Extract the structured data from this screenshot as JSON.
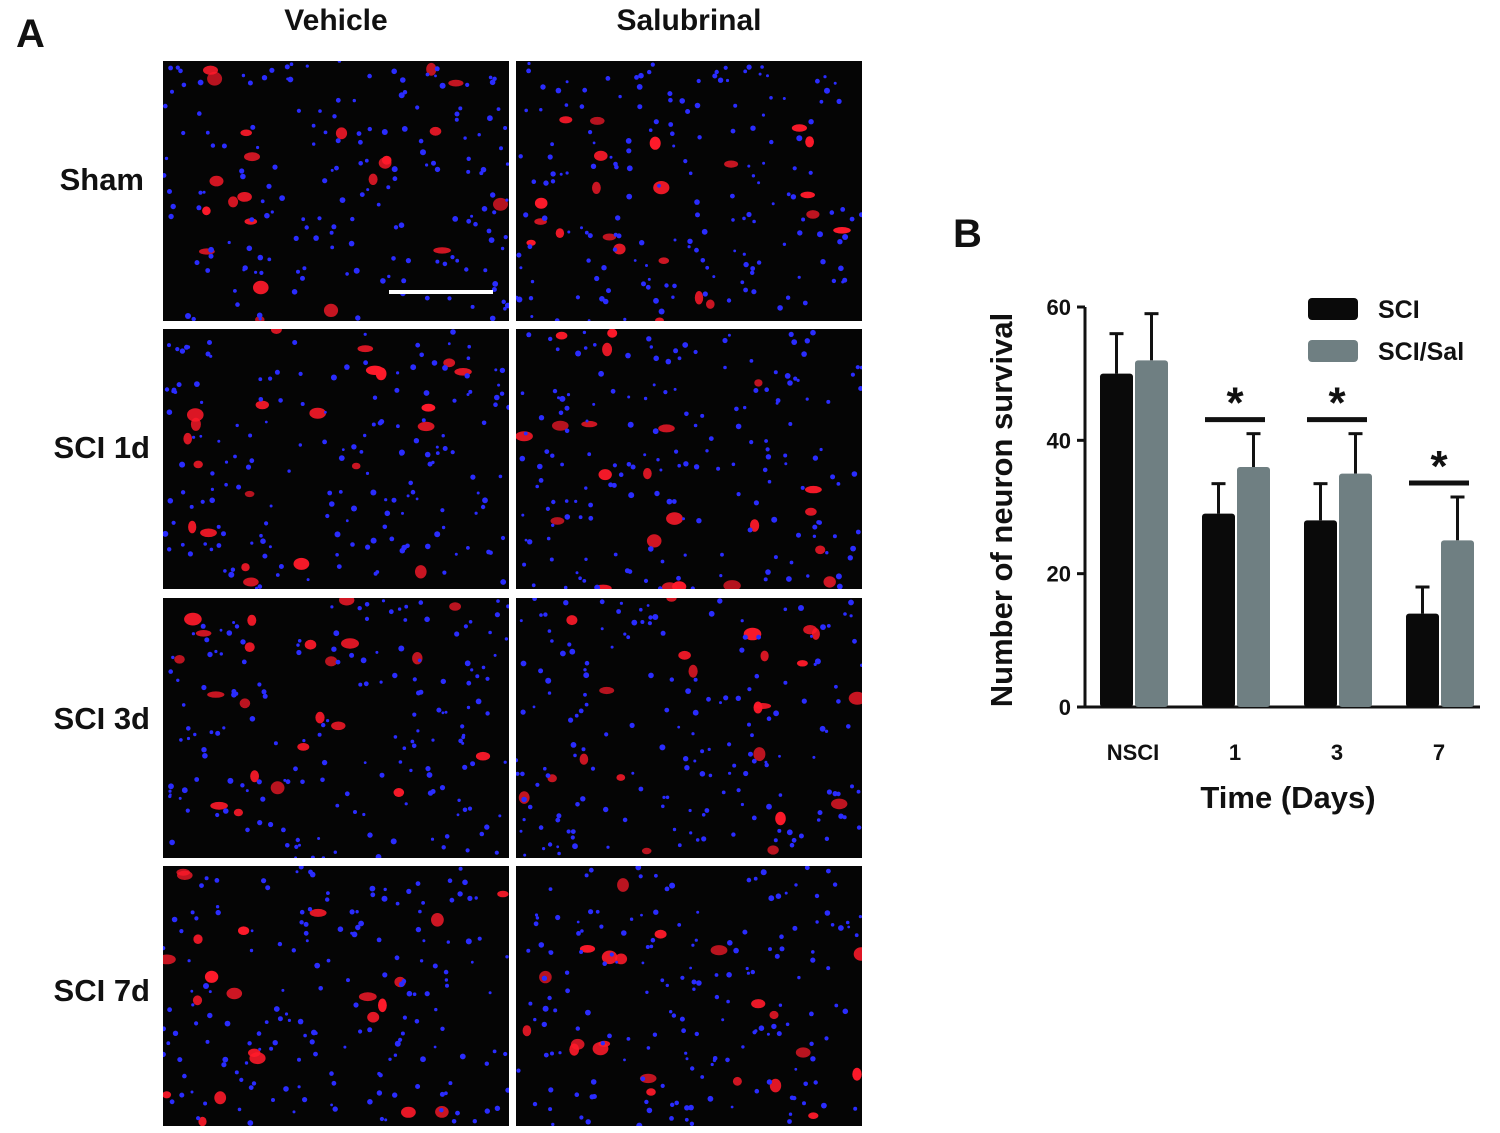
{
  "panel_a": {
    "letter": "A",
    "columns": [
      "Vehicle",
      "Salubrinal"
    ],
    "rows": [
      "Sham",
      "SCI 1d",
      "SCI 3d",
      "SCI 7d"
    ]
  },
  "panel_b": {
    "letter": "B"
  },
  "colors": {
    "sci": "#0a0a0a",
    "sci_sal": "#6f7f82",
    "nucleus": "#2a2cff",
    "neuron": "#ff1a2a"
  },
  "chart_data": {
    "type": "bar",
    "title": "",
    "xlabel": "Time (Days)",
    "ylabel": "Number of neuron survival",
    "categories": [
      "NSCI",
      "1",
      "3",
      "7"
    ],
    "ylim": [
      0,
      60
    ],
    "yticks": [
      0,
      20,
      40,
      60
    ],
    "series": [
      {
        "name": "SCI",
        "values": [
          50,
          29,
          28,
          14
        ],
        "errors": [
          6,
          4.5,
          5.5,
          4
        ]
      },
      {
        "name": "SCI/Sal",
        "values": [
          52,
          36,
          35,
          25
        ],
        "errors": [
          7,
          5,
          6,
          6.5
        ]
      }
    ],
    "significance": [
      {
        "category": "1",
        "label": "*"
      },
      {
        "category": "3",
        "label": "*"
      },
      {
        "category": "7",
        "label": "*"
      }
    ],
    "legend": {
      "position": "top-right"
    },
    "grid": false
  }
}
